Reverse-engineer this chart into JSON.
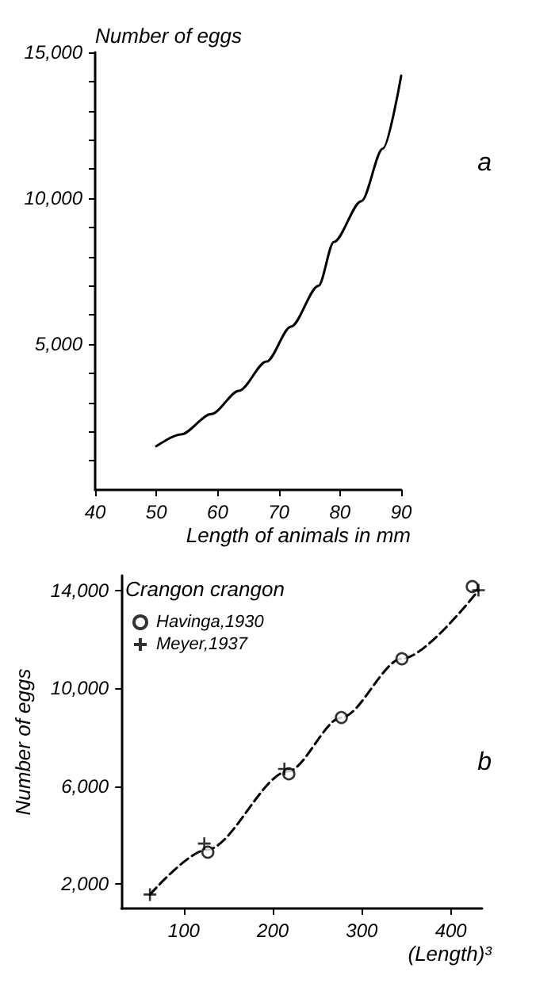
{
  "chart_data": [
    {
      "type": "line",
      "xlabel": "Length of animals in mm",
      "ylabel": "Number of eggs",
      "annotations": [
        "a"
      ],
      "xlim": [
        40,
        90
      ],
      "xticks": [
        40,
        50,
        60,
        70,
        80,
        90
      ],
      "ylim": [
        0,
        15000
      ],
      "yticks": [
        {
          "value": 1000,
          "label": null
        },
        {
          "value": 2000,
          "label": null
        },
        {
          "value": 3000,
          "label": null
        },
        {
          "value": 4000,
          "label": null
        },
        {
          "value": 5000,
          "label": "5,000"
        },
        {
          "value": 6000,
          "label": null
        },
        {
          "value": 7000,
          "label": null
        },
        {
          "value": 8000,
          "label": null
        },
        {
          "value": 9000,
          "label": null
        },
        {
          "value": 10000,
          "label": "10,000"
        },
        {
          "value": 11000,
          "label": null
        },
        {
          "value": 12000,
          "label": null
        },
        {
          "value": 13000,
          "label": null
        },
        {
          "value": 14000,
          "label": null
        },
        {
          "value": 15000,
          "label": "15,000"
        }
      ],
      "marker": "none",
      "line_style": "solid",
      "series": [
        {
          "color": "#000000",
          "x": [
            50,
            54,
            59,
            63.5,
            68,
            72,
            76.5,
            79,
            83.5,
            87,
            90
          ],
          "values": [
            1500,
            1900,
            2600,
            3400,
            4400,
            5600,
            7000,
            8500,
            9900,
            11700,
            14200
          ]
        }
      ]
    },
    {
      "type": "scatter",
      "xlabel": "(Length)³",
      "ylabel": "Number of eggs",
      "legend_title": "Crangon crangon",
      "annotations": [
        "b"
      ],
      "legend": "top left",
      "xlim": [
        30,
        435
      ],
      "xticks": [
        100,
        200,
        300,
        400
      ],
      "ylim": [
        1000,
        14600
      ],
      "yticks": [
        {
          "value": 2000,
          "label": "2,000"
        },
        {
          "value": 6000,
          "label": "6,000"
        },
        {
          "value": 10000,
          "label": "10,000"
        },
        {
          "value": 14000,
          "label": "14,000"
        }
      ],
      "series": [
        {
          "type": "line",
          "color": "#000000",
          "marker": "none",
          "line_style": "dashed",
          "x": [
            62,
            126,
            217,
            277,
            345,
            431
          ],
          "values": [
            1570,
            3400,
            6600,
            8800,
            11200,
            14000
          ]
        },
        {
          "name": "Havinga,1930",
          "color": "#000000",
          "marker": "circle",
          "x": [
            127,
            218,
            277,
            345,
            424
          ],
          "values": [
            3300,
            6500,
            8800,
            11200,
            14150
          ]
        },
        {
          "name": "Meyer,1937",
          "color": "#000000",
          "marker": "cross",
          "x": [
            62,
            123,
            213,
            431
          ],
          "values": [
            1570,
            3650,
            6700,
            14000
          ]
        }
      ]
    }
  ]
}
